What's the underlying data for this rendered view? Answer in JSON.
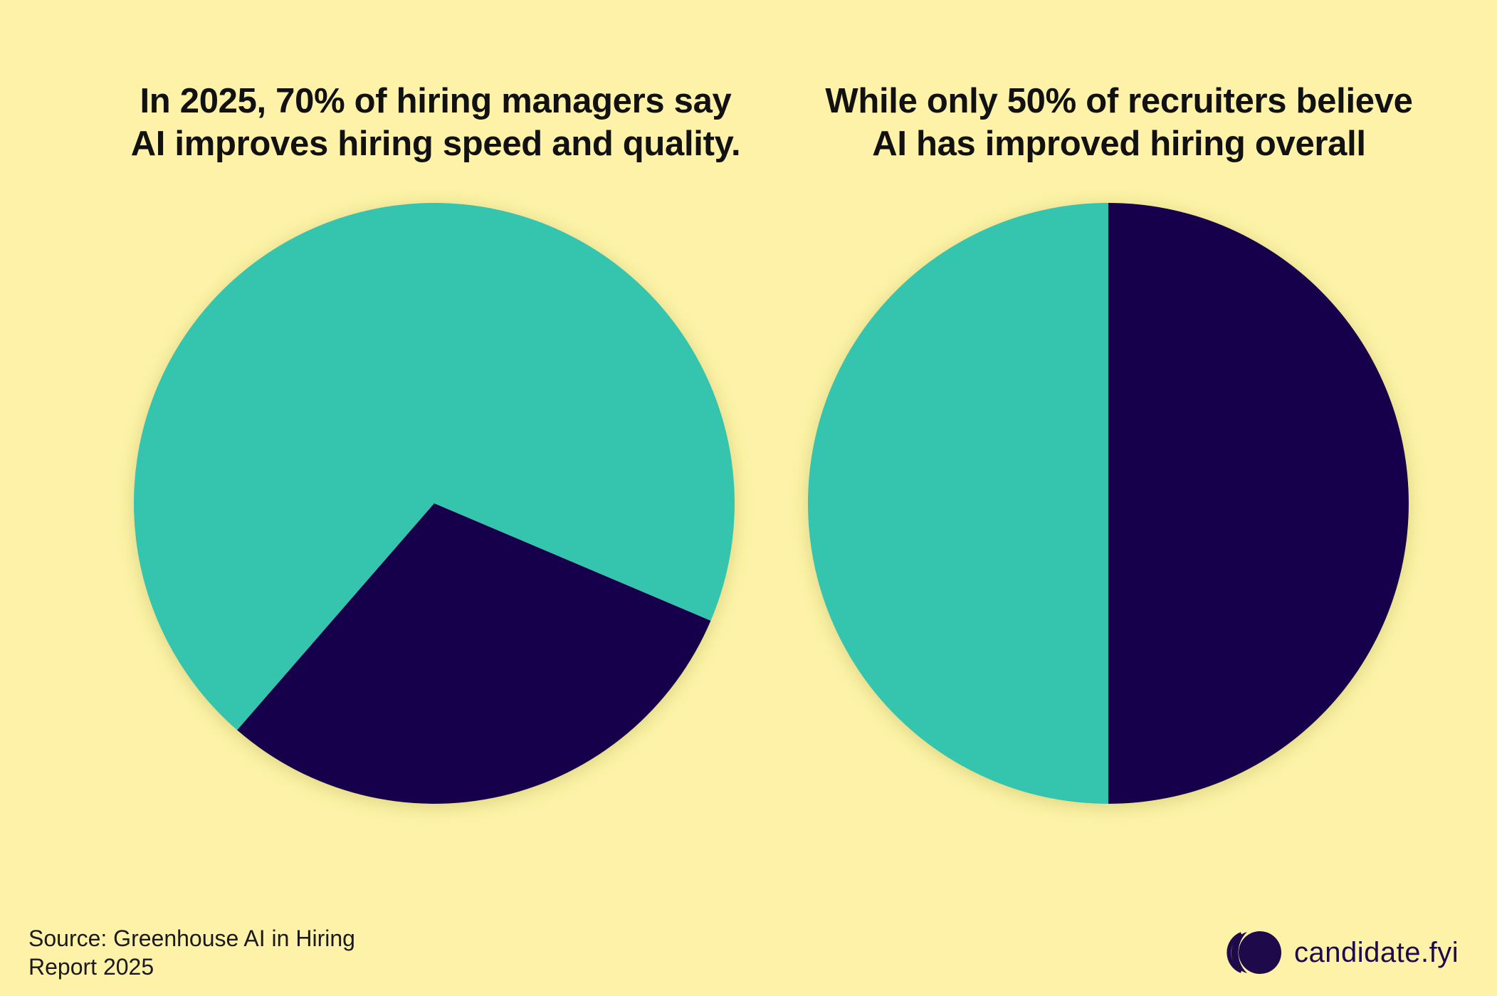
{
  "colors": {
    "background": "#FDF2A7",
    "teal": "#34C4AE",
    "navy": "#17004B",
    "brand": "#1E0A4A"
  },
  "chart_data": [
    {
      "type": "pie",
      "title_lines": [
        "In 2025, 70% of hiring managers say",
        "AI improves hiring speed and quality."
      ],
      "slices": [
        {
          "value": 70,
          "color": "#34C4AE"
        },
        {
          "value": 30,
          "color": "#17004B"
        }
      ],
      "start_angle_deg": -23,
      "legend": "none"
    },
    {
      "type": "pie",
      "title_lines": [
        "While only 50% of recruiters believe",
        "AI has improved hiring overall"
      ],
      "slices": [
        {
          "value": 50,
          "color": "#34C4AE"
        },
        {
          "value": 50,
          "color": "#17004B"
        }
      ],
      "start_angle_deg": 90,
      "legend": "none"
    }
  ],
  "source": {
    "lines": [
      "Source: Greenhouse AI in Hiring",
      "Report 2025"
    ]
  },
  "brand": {
    "name": "candidate.fyi",
    "logo_icon": "candidate-fyi-logo-icon"
  }
}
